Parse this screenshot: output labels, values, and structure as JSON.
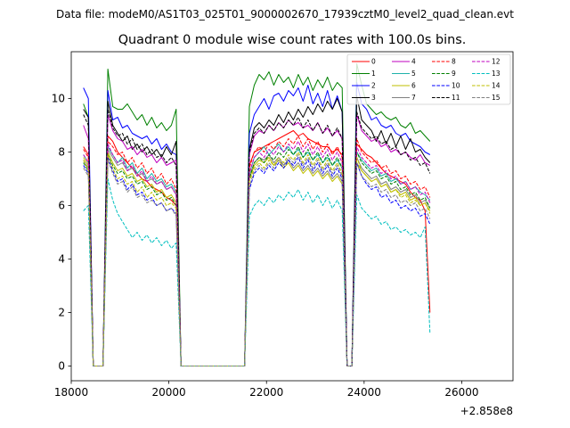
{
  "suptitle": "Data file: modeM0/AS1T03_025T01_9000002670_17939cztM0_level2_quad_clean.evt",
  "chart_data": {
    "type": "line",
    "title": "Quadrant 0 module wise count rates with 100.0s bins.",
    "xlabel": "",
    "ylabel": "",
    "x_offset_label": "+2.858e8",
    "xlim": [
      18000,
      27050
    ],
    "ylim": [
      -0.55,
      11.75
    ],
    "x_ticks": [
      18000,
      20000,
      22000,
      24000,
      26000
    ],
    "x_tick_labels": [
      "18000",
      "20000",
      "22000",
      "24000",
      "26000"
    ],
    "y_ticks": [
      0,
      2,
      4,
      6,
      8,
      10
    ],
    "y_tick_labels": [
      "0",
      "2",
      "4",
      "6",
      "8",
      "10"
    ],
    "grid": false,
    "legend_position": "top-right",
    "legend_columns": 4,
    "bin_seconds": 100,
    "x_start": 18250,
    "x_step": 100,
    "series": [
      {
        "name": "0",
        "color": "#ff0000",
        "dash": "solid",
        "values": [
          8.2,
          7.9,
          0,
          0,
          0,
          8.6,
          8.4,
          8.0,
          7.8,
          7.6,
          7.4,
          7.2,
          7.0,
          6.9,
          6.7,
          6.6,
          6.5,
          6.3,
          6.2,
          6.0,
          0,
          0,
          0,
          0,
          0,
          0,
          0,
          0,
          0,
          0,
          0,
          0,
          0,
          0,
          7.5,
          8.0,
          8.1,
          8.2,
          8.3,
          8.4,
          8.5,
          8.6,
          8.7,
          8.8,
          8.6,
          8.7,
          8.5,
          8.4,
          8.3,
          8.2,
          8.2,
          8.0,
          8.1,
          7.9,
          0,
          0,
          8.3,
          8.1,
          7.9,
          7.8,
          7.6,
          7.4,
          7.2,
          7.1,
          7.0,
          6.9,
          6.8,
          6.5,
          6.3,
          6.2,
          5.8,
          2.0
        ]
      },
      {
        "name": "1",
        "color": "#008000",
        "dash": "solid",
        "values": [
          9.8,
          9.3,
          0,
          0,
          0,
          11.1,
          9.7,
          9.6,
          9.6,
          9.8,
          9.5,
          9.2,
          9.4,
          9.0,
          9.3,
          8.9,
          9.1,
          8.8,
          9.0,
          9.6,
          0,
          0,
          0,
          0,
          0,
          0,
          0,
          0,
          0,
          0,
          0,
          0,
          0,
          0,
          9.7,
          10.5,
          10.9,
          10.7,
          11.0,
          10.5,
          10.9,
          10.6,
          10.8,
          10.4,
          10.9,
          10.5,
          10.8,
          10.3,
          10.7,
          10.4,
          10.8,
          10.3,
          10.6,
          10.4,
          0,
          0,
          11.3,
          10.5,
          9.8,
          9.6,
          9.4,
          9.5,
          9.3,
          9.2,
          9.3,
          9.0,
          8.9,
          9.1,
          8.7,
          8.8,
          8.6,
          8.4
        ]
      },
      {
        "name": "2",
        "color": "#0000ff",
        "dash": "solid",
        "values": [
          10.4,
          10.0,
          0,
          0,
          0,
          10.3,
          9.2,
          9.3,
          8.9,
          9.0,
          8.7,
          8.6,
          8.5,
          8.6,
          8.3,
          8.5,
          8.1,
          8.3,
          8.0,
          7.9,
          0,
          0,
          0,
          0,
          0,
          0,
          0,
          0,
          0,
          0,
          0,
          0,
          0,
          0,
          8.7,
          9.4,
          9.7,
          10.0,
          9.6,
          10.1,
          10.2,
          9.9,
          10.3,
          10.1,
          10.4,
          9.9,
          10.5,
          9.8,
          10.2,
          9.7,
          10.3,
          9.6,
          10.1,
          9.5,
          0,
          0,
          10.6,
          9.8,
          9.6,
          9.2,
          9.3,
          9.0,
          8.9,
          9.0,
          8.7,
          8.6,
          8.7,
          8.4,
          8.3,
          8.2,
          8.0,
          7.9
        ]
      },
      {
        "name": "3",
        "color": "#000000",
        "dash": "solid",
        "values": [
          9.6,
          9.3,
          0,
          0,
          0,
          9.9,
          9.0,
          8.7,
          8.4,
          8.6,
          8.1,
          8.3,
          8.0,
          8.2,
          7.9,
          8.1,
          7.8,
          8.2,
          7.9,
          8.4,
          0,
          0,
          0,
          0,
          0,
          0,
          0,
          0,
          0,
          0,
          0,
          0,
          0,
          0,
          8.1,
          8.9,
          9.1,
          8.9,
          9.2,
          9.0,
          9.4,
          9.1,
          9.5,
          9.2,
          9.6,
          9.3,
          9.7,
          9.4,
          9.8,
          9.5,
          9.9,
          9.6,
          10.0,
          9.5,
          0,
          0,
          10.1,
          9.2,
          9.0,
          8.8,
          8.4,
          8.8,
          8.3,
          8.7,
          8.2,
          8.6,
          8.1,
          8.5,
          8.0,
          8.1,
          7.8,
          7.6
        ]
      },
      {
        "name": "4",
        "color": "#bf00bf",
        "dash": "solid",
        "values": [
          9.0,
          8.5,
          0,
          0,
          0,
          9.4,
          8.8,
          8.5,
          8.4,
          8.1,
          8.2,
          7.9,
          8.1,
          7.8,
          7.9,
          7.6,
          7.8,
          7.5,
          7.6,
          7.7,
          0,
          0,
          0,
          0,
          0,
          0,
          0,
          0,
          0,
          0,
          0,
          0,
          0,
          0,
          7.9,
          8.6,
          8.8,
          8.7,
          9.0,
          8.8,
          9.1,
          8.9,
          9.2,
          9.0,
          9.1,
          8.9,
          9.0,
          8.8,
          9.1,
          8.7,
          8.9,
          8.6,
          8.8,
          8.5,
          0,
          0,
          9.4,
          8.8,
          8.6,
          8.4,
          8.5,
          8.2,
          8.3,
          8.0,
          8.1,
          7.9,
          8.0,
          7.8,
          7.7,
          7.9,
          7.6,
          7.5
        ]
      },
      {
        "name": "5",
        "color": "#20b2aa",
        "dash": "solid",
        "values": [
          7.9,
          7.6,
          0,
          0,
          0,
          8.2,
          7.9,
          7.6,
          7.8,
          7.4,
          7.6,
          7.2,
          7.4,
          7.0,
          7.2,
          6.9,
          7.0,
          6.7,
          6.8,
          6.5,
          0,
          0,
          0,
          0,
          0,
          0,
          0,
          0,
          0,
          0,
          0,
          0,
          0,
          0,
          7.2,
          7.8,
          8.0,
          8.2,
          7.9,
          8.1,
          8.3,
          8.0,
          8.2,
          7.9,
          8.1,
          7.8,
          8.0,
          7.7,
          7.9,
          7.6,
          7.8,
          7.5,
          7.7,
          7.4,
          0,
          0,
          8.0,
          7.7,
          7.5,
          7.3,
          7.4,
          7.1,
          7.2,
          6.9,
          7.0,
          6.8,
          6.9,
          6.6,
          6.7,
          6.5,
          6.4,
          6.2
        ]
      },
      {
        "name": "6",
        "color": "#bfbf00",
        "dash": "solid",
        "values": [
          7.8,
          7.5,
          0,
          0,
          0,
          8.0,
          7.6,
          7.3,
          7.4,
          7.1,
          7.2,
          6.9,
          7.0,
          6.7,
          6.8,
          6.5,
          6.6,
          6.3,
          6.4,
          6.1,
          0,
          0,
          0,
          0,
          0,
          0,
          0,
          0,
          0,
          0,
          0,
          0,
          0,
          0,
          7.0,
          7.5,
          7.7,
          7.6,
          7.8,
          7.5,
          7.7,
          7.4,
          7.6,
          7.3,
          7.5,
          7.2,
          7.4,
          7.1,
          7.3,
          7.0,
          7.2,
          6.9,
          7.1,
          6.8,
          0,
          0,
          7.6,
          7.3,
          7.1,
          6.9,
          7.0,
          6.7,
          6.8,
          6.5,
          6.6,
          6.4,
          6.5,
          6.2,
          6.3,
          6.0,
          6.1,
          5.8
        ]
      },
      {
        "name": "7",
        "color": "#808080",
        "dash": "solid",
        "values": [
          7.7,
          7.4,
          0,
          0,
          0,
          8.1,
          7.8,
          7.5,
          7.6,
          7.3,
          7.4,
          7.1,
          7.2,
          6.9,
          7.0,
          6.8,
          6.9,
          6.6,
          6.7,
          6.4,
          0,
          0,
          0,
          0,
          0,
          0,
          0,
          0,
          0,
          0,
          0,
          0,
          0,
          0,
          7.1,
          7.6,
          7.8,
          7.7,
          7.9,
          7.6,
          7.8,
          7.5,
          7.7,
          7.4,
          7.6,
          7.3,
          7.5,
          7.2,
          7.4,
          7.1,
          7.3,
          7.0,
          7.2,
          6.9,
          0,
          0,
          7.8,
          7.4,
          7.2,
          7.0,
          7.1,
          6.8,
          6.9,
          6.6,
          6.7,
          6.5,
          6.6,
          6.3,
          6.4,
          6.1,
          6.2,
          5.9
        ]
      },
      {
        "name": "8",
        "color": "#ff0000",
        "dash": "dashed",
        "values": [
          8.1,
          7.8,
          0,
          0,
          0,
          8.4,
          8.2,
          7.9,
          8.0,
          7.6,
          7.8,
          7.4,
          7.6,
          7.2,
          7.4,
          7.0,
          7.2,
          6.8,
          7.0,
          6.6,
          0,
          0,
          0,
          0,
          0,
          0,
          0,
          0,
          0,
          0,
          0,
          0,
          0,
          0,
          7.4,
          8.0,
          8.2,
          8.0,
          8.3,
          8.1,
          8.4,
          8.2,
          8.5,
          8.3,
          8.6,
          8.2,
          8.5,
          8.1,
          8.4,
          8.0,
          8.3,
          7.9,
          8.2,
          7.8,
          0,
          0,
          8.5,
          8.0,
          7.8,
          7.6,
          7.7,
          7.4,
          7.5,
          7.2,
          7.3,
          7.0,
          7.1,
          6.8,
          6.9,
          6.6,
          6.7,
          6.3
        ]
      },
      {
        "name": "9",
        "color": "#008000",
        "dash": "dashed",
        "values": [
          7.6,
          7.3,
          0,
          0,
          0,
          7.9,
          7.5,
          7.2,
          7.3,
          7.0,
          7.1,
          6.8,
          6.9,
          6.6,
          6.7,
          6.4,
          6.5,
          6.2,
          6.3,
          6.0,
          0,
          0,
          0,
          0,
          0,
          0,
          0,
          0,
          0,
          0,
          0,
          0,
          0,
          0,
          7.0,
          7.6,
          7.8,
          7.6,
          7.9,
          7.7,
          8.0,
          7.8,
          8.1,
          7.9,
          8.2,
          7.8,
          8.1,
          7.7,
          8.0,
          7.6,
          7.9,
          7.5,
          7.8,
          7.4,
          0,
          0,
          8.0,
          7.6,
          7.4,
          7.2,
          7.3,
          7.0,
          7.1,
          6.8,
          6.9,
          6.6,
          6.7,
          6.4,
          6.5,
          6.2,
          6.3,
          5.9
        ]
      },
      {
        "name": "10",
        "color": "#0000ff",
        "dash": "dashed",
        "values": [
          7.5,
          7.2,
          0,
          0,
          0,
          7.8,
          7.3,
          6.9,
          7.0,
          6.6,
          6.8,
          6.4,
          6.5,
          6.2,
          6.3,
          6.0,
          6.1,
          5.8,
          5.9,
          5.7,
          0,
          0,
          0,
          0,
          0,
          0,
          0,
          0,
          0,
          0,
          0,
          0,
          0,
          0,
          6.6,
          7.2,
          7.4,
          7.2,
          7.5,
          7.3,
          7.6,
          7.4,
          7.7,
          7.5,
          7.8,
          7.4,
          7.7,
          7.3,
          7.6,
          7.2,
          7.5,
          7.1,
          7.4,
          7.0,
          0,
          0,
          7.6,
          7.1,
          6.8,
          6.6,
          6.7,
          6.3,
          6.4,
          6.1,
          6.2,
          5.9,
          6.0,
          5.8,
          5.9,
          5.6,
          5.7,
          5.3
        ]
      },
      {
        "name": "11",
        "color": "#000000",
        "dash": "dashed",
        "values": [
          9.4,
          9.0,
          0,
          0,
          0,
          9.6,
          8.9,
          8.6,
          8.7,
          8.3,
          8.5,
          8.1,
          8.3,
          7.9,
          8.1,
          7.8,
          7.9,
          7.6,
          7.8,
          7.5,
          0,
          0,
          0,
          0,
          0,
          0,
          0,
          0,
          0,
          0,
          0,
          0,
          0,
          0,
          8.0,
          8.7,
          8.9,
          8.7,
          9.0,
          8.8,
          9.1,
          8.9,
          9.2,
          9.0,
          9.3,
          8.9,
          9.2,
          8.8,
          9.1,
          8.7,
          9.0,
          8.6,
          8.9,
          8.5,
          0,
          0,
          9.5,
          8.9,
          8.7,
          8.5,
          8.6,
          8.3,
          8.4,
          8.1,
          8.2,
          7.9,
          8.0,
          7.7,
          7.8,
          7.5,
          7.6,
          7.2
        ]
      },
      {
        "name": "12",
        "color": "#bf00bf",
        "dash": "dashed",
        "values": [
          7.9,
          7.6,
          0,
          0,
          0,
          8.3,
          7.9,
          7.6,
          7.7,
          7.3,
          7.5,
          7.1,
          7.3,
          6.9,
          7.1,
          6.8,
          6.9,
          6.6,
          6.7,
          6.4,
          0,
          0,
          0,
          0,
          0,
          0,
          0,
          0,
          0,
          0,
          0,
          0,
          0,
          0,
          7.2,
          7.8,
          8.0,
          7.8,
          8.1,
          7.9,
          8.2,
          8.0,
          8.3,
          8.1,
          8.4,
          8.0,
          8.3,
          7.9,
          8.2,
          7.8,
          8.1,
          7.7,
          8.0,
          7.6,
          0,
          0,
          8.2,
          7.8,
          7.6,
          7.4,
          7.5,
          7.2,
          7.3,
          7.0,
          7.1,
          6.8,
          6.9,
          6.6,
          6.7,
          6.4,
          6.5,
          6.1
        ]
      },
      {
        "name": "13",
        "color": "#00bfbf",
        "dash": "dashed",
        "values": [
          5.8,
          6.0,
          0,
          0,
          0,
          7.0,
          6.2,
          5.7,
          5.4,
          5.1,
          4.8,
          5.0,
          4.7,
          4.9,
          4.6,
          4.8,
          4.5,
          4.7,
          4.4,
          4.6,
          0,
          0,
          0,
          0,
          0,
          0,
          0,
          0,
          0,
          0,
          0,
          0,
          0,
          0,
          5.6,
          6.0,
          6.2,
          6.0,
          6.3,
          6.1,
          6.4,
          6.2,
          6.5,
          6.3,
          6.6,
          6.2,
          6.5,
          6.1,
          6.4,
          6.0,
          6.3,
          5.9,
          6.2,
          5.8,
          0,
          0,
          6.4,
          5.9,
          5.7,
          5.5,
          5.6,
          5.3,
          5.4,
          5.1,
          5.2,
          5.0,
          5.1,
          4.9,
          5.0,
          4.8,
          5.2,
          1.2
        ]
      },
      {
        "name": "14",
        "color": "#bfbf00",
        "dash": "dashed",
        "values": [
          7.7,
          7.3,
          0,
          0,
          0,
          7.9,
          7.4,
          7.0,
          7.1,
          6.8,
          6.9,
          6.5,
          6.7,
          6.3,
          6.5,
          6.2,
          6.3,
          6.0,
          6.1,
          5.9,
          0,
          0,
          0,
          0,
          0,
          0,
          0,
          0,
          0,
          0,
          0,
          0,
          0,
          0,
          6.9,
          7.4,
          7.6,
          7.4,
          7.7,
          7.5,
          7.8,
          7.6,
          7.9,
          7.7,
          8.0,
          7.6,
          7.9,
          7.5,
          7.8,
          7.4,
          7.7,
          7.3,
          7.6,
          7.2,
          0,
          0,
          7.8,
          7.3,
          7.1,
          6.9,
          7.0,
          6.7,
          6.8,
          6.5,
          6.6,
          6.3,
          6.4,
          6.1,
          6.2,
          6.0,
          6.1,
          5.7
        ]
      },
      {
        "name": "15",
        "color": "#808080",
        "dash": "dashed",
        "values": [
          7.4,
          7.1,
          0,
          0,
          0,
          7.7,
          7.2,
          6.8,
          6.9,
          6.5,
          6.7,
          6.3,
          6.4,
          6.1,
          6.2,
          6.0,
          6.1,
          5.8,
          5.9,
          5.6,
          0,
          0,
          0,
          0,
          0,
          0,
          0,
          0,
          0,
          0,
          0,
          0,
          0,
          0,
          6.7,
          7.3,
          7.5,
          7.3,
          7.6,
          7.4,
          7.7,
          7.5,
          7.8,
          7.6,
          7.9,
          7.5,
          7.8,
          7.4,
          7.7,
          7.3,
          7.6,
          7.2,
          7.5,
          7.1,
          0,
          0,
          7.6,
          7.1,
          6.9,
          6.7,
          6.8,
          6.5,
          6.6,
          6.3,
          6.4,
          6.1,
          6.2,
          6.0,
          6.1,
          5.8,
          5.9,
          5.5
        ]
      }
    ]
  }
}
